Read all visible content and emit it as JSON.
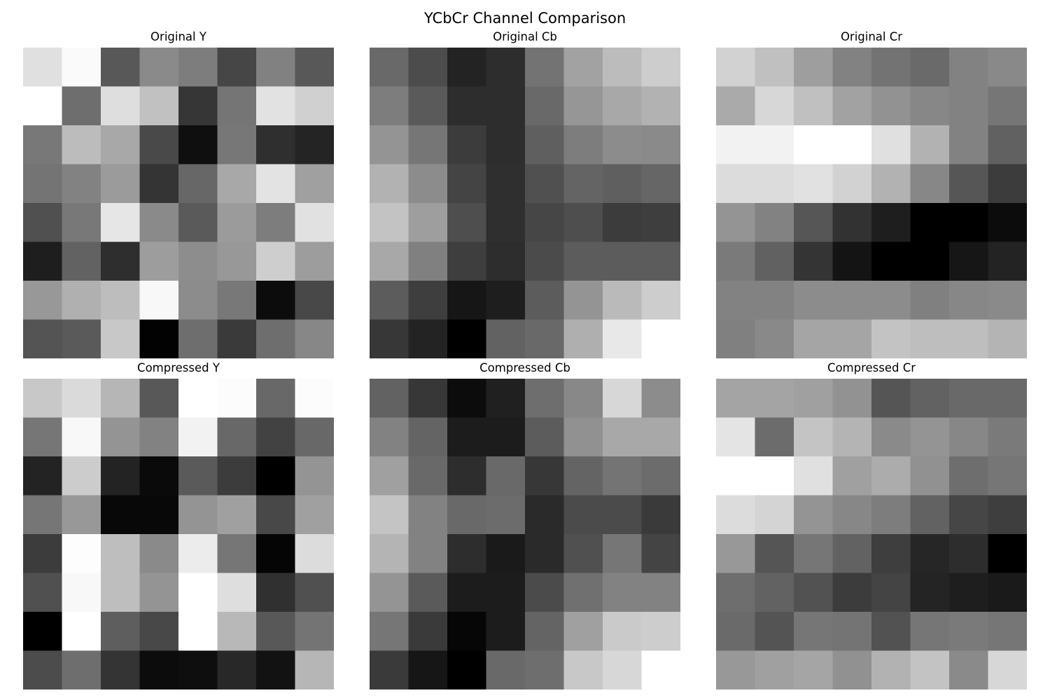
{
  "title": "YCbCr Channel Comparison",
  "chart_data": [
    {
      "type": "heatmap",
      "title": "Original Y",
      "colormap": "gray",
      "values": [
        [
          224,
          250,
          88,
          138,
          125,
          70,
          129,
          88
        ],
        [
          255,
          110,
          222,
          193,
          54,
          117,
          226,
          208
        ],
        [
          120,
          188,
          168,
          73,
          15,
          119,
          47,
          36
        ],
        [
          116,
          130,
          155,
          52,
          103,
          168,
          227,
          160
        ],
        [
          80,
          120,
          230,
          138,
          90,
          155,
          125,
          225
        ],
        [
          30,
          98,
          46,
          157,
          141,
          152,
          206,
          157
        ],
        [
          152,
          176,
          189,
          248,
          140,
          120,
          12,
          72
        ],
        [
          84,
          90,
          200,
          2,
          110,
          58,
          110,
          135
        ]
      ]
    },
    {
      "type": "heatmap",
      "title": "Original Cb",
      "colormap": "gray",
      "values": [
        [
          105,
          76,
          35,
          45,
          115,
          162,
          188,
          205
        ],
        [
          125,
          90,
          45,
          45,
          105,
          150,
          168,
          178
        ],
        [
          148,
          118,
          60,
          45,
          95,
          125,
          140,
          138
        ],
        [
          178,
          140,
          68,
          47,
          80,
          100,
          95,
          102
        ],
        [
          195,
          158,
          78,
          47,
          70,
          78,
          60,
          62
        ],
        [
          168,
          128,
          62,
          45,
          75,
          92,
          92,
          92
        ],
        [
          92,
          62,
          22,
          30,
          92,
          148,
          186,
          205
        ],
        [
          55,
          35,
          0,
          98,
          105,
          175,
          232,
          255
        ]
      ]
    },
    {
      "type": "heatmap",
      "title": "Original Cr",
      "colormap": "gray",
      "values": [
        [
          210,
          192,
          158,
          130,
          115,
          106,
          130,
          137
        ],
        [
          170,
          215,
          192,
          162,
          146,
          135,
          130,
          118
        ],
        [
          242,
          242,
          255,
          255,
          224,
          178,
          130,
          97
        ],
        [
          220,
          220,
          225,
          210,
          178,
          135,
          86,
          60
        ],
        [
          148,
          130,
          86,
          50,
          30,
          0,
          0,
          12
        ],
        [
          122,
          97,
          52,
          20,
          0,
          0,
          22,
          35
        ],
        [
          130,
          130,
          140,
          140,
          140,
          128,
          135,
          138
        ],
        [
          128,
          137,
          165,
          165,
          195,
          190,
          190,
          180
        ]
      ]
    },
    {
      "type": "heatmap",
      "title": "Compressed Y",
      "colormap": "gray",
      "values": [
        [
          200,
          218,
          182,
          88,
          255,
          252,
          104,
          252
        ],
        [
          118,
          248,
          148,
          130,
          242,
          104,
          66,
          104
        ],
        [
          35,
          204,
          35,
          10,
          90,
          60,
          0,
          148
        ],
        [
          118,
          152,
          8,
          8,
          148,
          160,
          72,
          160
        ],
        [
          60,
          253,
          190,
          138,
          236,
          118,
          5,
          220
        ],
        [
          80,
          248,
          190,
          148,
          255,
          222,
          48,
          80
        ],
        [
          0,
          255,
          94,
          72,
          255,
          184,
          88,
          116
        ],
        [
          76,
          110,
          52,
          12,
          14,
          40,
          18,
          182
        ]
      ]
    },
    {
      "type": "heatmap",
      "title": "Compressed Cb",
      "colormap": "gray",
      "values": [
        [
          98,
          55,
          12,
          32,
          110,
          136,
          215,
          140
        ],
        [
          130,
          100,
          28,
          28,
          92,
          145,
          168,
          168
        ],
        [
          160,
          105,
          45,
          105,
          55,
          100,
          116,
          108
        ],
        [
          196,
          130,
          105,
          108,
          42,
          75,
          75,
          58
        ],
        [
          180,
          130,
          45,
          26,
          42,
          80,
          118,
          68
        ],
        [
          148,
          90,
          28,
          28,
          75,
          112,
          130,
          130
        ],
        [
          118,
          58,
          6,
          28,
          100,
          160,
          202,
          205
        ],
        [
          58,
          22,
          0,
          105,
          110,
          200,
          215,
          255
        ]
      ]
    },
    {
      "type": "heatmap",
      "title": "Compressed Cr",
      "colormap": "gray",
      "values": [
        [
          164,
          164,
          160,
          146,
          85,
          98,
          105,
          105
        ],
        [
          228,
          108,
          196,
          180,
          138,
          148,
          135,
          122
        ],
        [
          255,
          255,
          224,
          160,
          172,
          145,
          110,
          118
        ],
        [
          220,
          212,
          148,
          135,
          125,
          98,
          70,
          62
        ],
        [
          152,
          85,
          118,
          98,
          62,
          38,
          45,
          0
        ],
        [
          110,
          98,
          82,
          60,
          68,
          36,
          30,
          26
        ],
        [
          106,
          84,
          118,
          116,
          82,
          118,
          122,
          118
        ],
        [
          152,
          160,
          165,
          145,
          178,
          195,
          138,
          215
        ]
      ]
    }
  ]
}
